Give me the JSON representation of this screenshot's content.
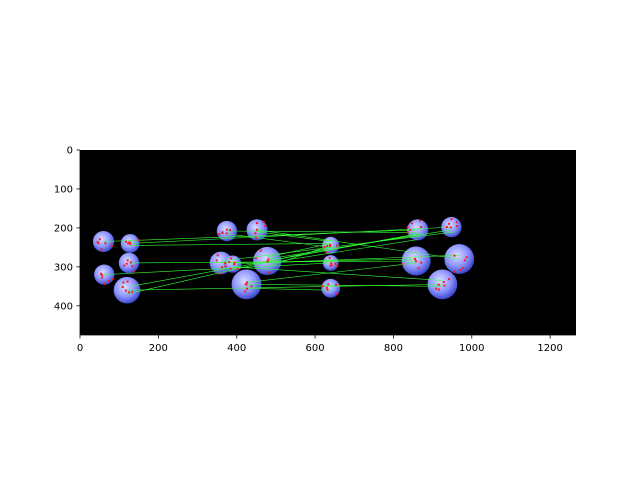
{
  "figure": {
    "axes": {
      "xlim": [
        0,
        1266
      ],
      "ylim": [
        475,
        0
      ],
      "x_ticks": [
        0,
        200,
        400,
        600,
        800,
        1000,
        1200
      ],
      "y_ticks": [
        0,
        100,
        200,
        300,
        400
      ],
      "x_tick_labels": [
        "0",
        "200",
        "400",
        "600",
        "800",
        "1000",
        "1200"
      ],
      "y_tick_labels": [
        "0",
        "100",
        "200",
        "300",
        "400"
      ],
      "grid": false
    },
    "colors": {
      "background": "#000000",
      "sphere": "#8f96ff",
      "sphere_highlight": "#d7dcff",
      "sphere_shadow": "#3340c8",
      "match_line": "#33ff33",
      "keypoint": "#ff1a1a"
    }
  }
}
